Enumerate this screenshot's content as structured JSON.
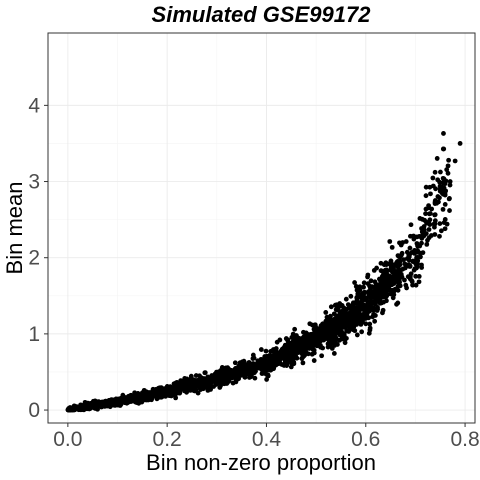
{
  "chart_data": {
    "type": "scatter",
    "title": "Simulated GSE99172",
    "xlabel": "Bin non-zero proportion",
    "ylabel": "Bin mean",
    "xlim": [
      -0.04,
      0.82
    ],
    "ylim": [
      -0.17,
      4.95
    ],
    "x_ticks": [
      0.0,
      0.2,
      0.4,
      0.6,
      0.8
    ],
    "x_tick_labels": [
      "0.0",
      "0.2",
      "0.4",
      "0.6",
      "0.8"
    ],
    "y_ticks": [
      0,
      1,
      2,
      3,
      4
    ],
    "y_tick_labels": [
      "0",
      "1",
      "2",
      "3",
      "4"
    ],
    "grid": true,
    "legend": "none",
    "point_color": "#000000",
    "trend_points": [
      {
        "x": 0.0,
        "y": 0.0
      },
      {
        "x": 0.1,
        "y": 0.11
      },
      {
        "x": 0.2,
        "y": 0.24
      },
      {
        "x": 0.3,
        "y": 0.41
      },
      {
        "x": 0.4,
        "y": 0.62
      },
      {
        "x": 0.5,
        "y": 0.94
      },
      {
        "x": 0.6,
        "y": 1.38
      },
      {
        "x": 0.7,
        "y": 2.0
      },
      {
        "x": 0.78,
        "y": 3.3
      }
    ],
    "extreme_points": [
      {
        "x": 0.79,
        "y": 3.5
      },
      {
        "x": 0.78,
        "y": 3.27
      },
      {
        "x": 0.77,
        "y": 3.0
      },
      {
        "x": 0.76,
        "y": 2.87
      },
      {
        "x": 0.75,
        "y": 2.9
      },
      {
        "x": 0.76,
        "y": 2.7
      },
      {
        "x": 0.74,
        "y": 2.75
      }
    ]
  }
}
